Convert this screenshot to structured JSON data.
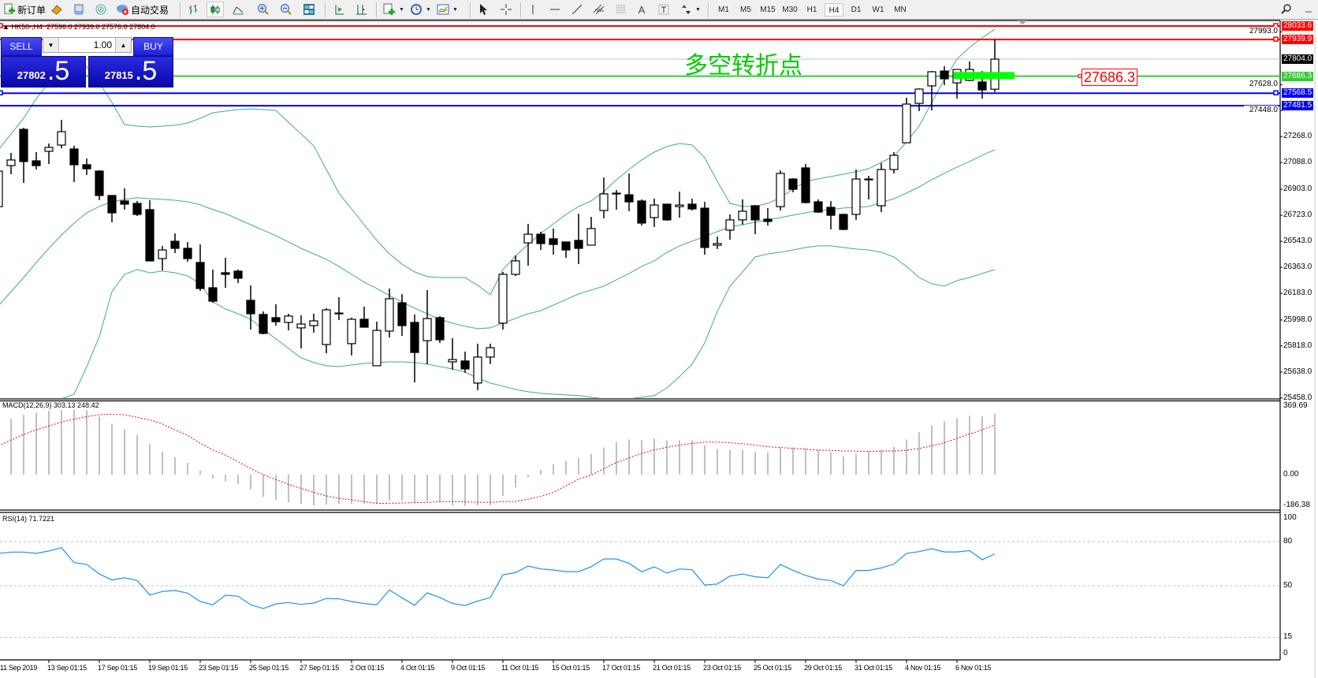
{
  "toolbar": {
    "new_order": "新订单",
    "auto_trading": "自动交易",
    "icons": [
      "new-order-icon",
      "folder-icon",
      "navigator-icon",
      "signal-icon",
      "auto-trading-icon",
      "bar-chart-icon",
      "candlestick-icon",
      "line-chart-icon",
      "zoom-in-icon",
      "zoom-out-icon",
      "tile-windows-icon",
      "auto-scroll-icon",
      "chart-shift-icon",
      "new-chart-icon",
      "periods-icon",
      "templates-icon",
      "cursor-icon",
      "crosshair-icon",
      "vertical-line-icon",
      "horizontal-line-icon",
      "trendline-icon",
      "channel-icon",
      "fibonacci-icon",
      "text-icon",
      "text-label-icon",
      "arrows-icon",
      "search-icon"
    ],
    "timeframes": [
      "M1",
      "M5",
      "M15",
      "M30",
      "H1",
      "H4",
      "D1",
      "W1",
      "MN"
    ],
    "active_timeframe": "H4"
  },
  "chart": {
    "title": "HK50-,H4",
    "ohlc": "27596.0 27939.0 27576.0 27804.0",
    "annotation": "多空转折点",
    "price_label": "27686.3"
  },
  "trade_panel": {
    "sell_label": "SELL",
    "buy_label": "BUY",
    "lot": "1.00",
    "sell_main": "27802",
    "sell_frac": ".5",
    "buy_main": "27815",
    "buy_frac": ".5"
  },
  "colors": {
    "bid_line": "#c0c0c0",
    "red_line": "#ff0000",
    "green_line": "#32cd32",
    "blue_line": "#0000ff",
    "bollinger": "#3cb371",
    "macd_hist": "#c0c0c0",
    "macd_signal": "#ff0000",
    "rsi": "#1e90ff",
    "zone": "#00ff00"
  },
  "chart_data": {
    "type": "candlestick",
    "symbol": "HK50-",
    "timeframe": "H4",
    "candles_ohlc": [
      [
        26783,
        27067,
        26740,
        27029
      ],
      [
        27067,
        27155,
        27007,
        27106
      ],
      [
        27318,
        27329,
        26947,
        27095
      ],
      [
        27100,
        27160,
        27040,
        27067
      ],
      [
        27166,
        27220,
        27078,
        27193
      ],
      [
        27209,
        27384,
        27187,
        27302
      ],
      [
        27182,
        27204,
        26953,
        27073
      ],
      [
        27073,
        27116,
        27002,
        27045
      ],
      [
        27029,
        27035,
        26827,
        26860
      ],
      [
        26860,
        26860,
        26674,
        26740
      ],
      [
        26822,
        26909,
        26762,
        26800
      ],
      [
        26805,
        26822,
        26718,
        26729
      ],
      [
        26762,
        26827,
        26407,
        26407
      ],
      [
        26423,
        26510,
        26341,
        26483
      ],
      [
        26543,
        26598,
        26461,
        26494
      ],
      [
        26494,
        26538,
        26401,
        26423
      ],
      [
        26396,
        26521,
        26199,
        26216
      ],
      [
        26221,
        26347,
        26117,
        26128
      ],
      [
        26325,
        26429,
        26221,
        26314
      ],
      [
        26336,
        26347,
        26254,
        26287
      ],
      [
        26134,
        26237,
        25932,
        26041
      ],
      [
        26036,
        26057,
        25899,
        25905
      ],
      [
        26014,
        26107,
        25959,
        25986
      ],
      [
        25981,
        26041,
        25926,
        26025
      ],
      [
        25943,
        26030,
        25801,
        25970
      ],
      [
        25959,
        26041,
        25910,
        25992
      ],
      [
        25828,
        26079,
        25768,
        26068
      ],
      [
        26046,
        26156,
        25997,
        26046
      ],
      [
        25834,
        26014,
        25752,
        26003
      ],
      [
        26003,
        26090,
        25948,
        25948
      ],
      [
        25681,
        25986,
        25681,
        25926
      ],
      [
        25921,
        26216,
        25877,
        26145
      ],
      [
        26117,
        26177,
        25888,
        25959
      ],
      [
        25981,
        26036,
        25566,
        25773
      ],
      [
        25855,
        26205,
        25692,
        26008
      ],
      [
        26014,
        26025,
        25839,
        25861
      ],
      [
        25708,
        25872,
        25654,
        25724
      ],
      [
        25714,
        25779,
        25632,
        25659
      ],
      [
        25561,
        25834,
        25512,
        25741
      ],
      [
        25741,
        25834,
        25692,
        25806
      ],
      [
        25976,
        26330,
        25932,
        26314
      ],
      [
        26314,
        26445,
        26303,
        26407
      ],
      [
        26532,
        26663,
        26374,
        26592
      ],
      [
        26592,
        26609,
        26483,
        26527
      ],
      [
        26560,
        26631,
        26450,
        26521
      ],
      [
        26538,
        26538,
        26429,
        26483
      ],
      [
        26549,
        26734,
        26385,
        26494
      ],
      [
        26516,
        26712,
        26516,
        26631
      ],
      [
        26756,
        26985,
        26702,
        26871
      ],
      [
        26876,
        26898,
        26762,
        26876
      ],
      [
        26865,
        27013,
        26751,
        26816
      ],
      [
        26822,
        26833,
        26652,
        26669
      ],
      [
        26707,
        26838,
        26642,
        26794
      ],
      [
        26800,
        26800,
        26685,
        26691
      ],
      [
        26783,
        26887,
        26707,
        26794
      ],
      [
        26800,
        26838,
        26756,
        26767
      ],
      [
        26772,
        26816,
        26450,
        26500
      ],
      [
        26516,
        26576,
        26489,
        26527
      ],
      [
        26620,
        26729,
        26554,
        26691
      ],
      [
        26691,
        26833,
        26658,
        26751
      ],
      [
        26789,
        26794,
        26592,
        26691
      ],
      [
        26696,
        26772,
        26652,
        26680
      ],
      [
        26783,
        27034,
        26756,
        27013
      ],
      [
        26974,
        26980,
        26882,
        26903
      ],
      [
        27051,
        27078,
        26805,
        26811
      ],
      [
        26816,
        26833,
        26740,
        26745
      ],
      [
        26778,
        26822,
        26625,
        26723
      ],
      [
        26729,
        26734,
        26620,
        26625
      ],
      [
        26729,
        27040,
        26691,
        26974
      ],
      [
        26974,
        26996,
        26833,
        26974
      ],
      [
        26789,
        27084,
        26745,
        27040
      ],
      [
        27040,
        27160,
        27013,
        27138
      ],
      [
        27225,
        27537,
        27225,
        27493
      ],
      [
        27498,
        27602,
        27444,
        27597
      ],
      [
        27619,
        27722,
        27449,
        27717
      ],
      [
        27722,
        27755,
        27624,
        27668
      ],
      [
        27640,
        27733,
        27531,
        27733
      ],
      [
        27657,
        27788,
        27651,
        27733
      ],
      [
        27646,
        27722,
        27531,
        27591
      ],
      [
        27596.0,
        27939.0,
        27576.0,
        27804.0
      ]
    ],
    "bollinger": {
      "upper": [
        27177,
        27286,
        27395,
        27531,
        27640,
        27722,
        27777,
        27750,
        27640,
        27504,
        27351,
        27340,
        27335,
        27340,
        27346,
        27362,
        27395,
        27433,
        27444,
        27455,
        27460,
        27455,
        27449,
        27367,
        27286,
        27204,
        27040,
        26876,
        26767,
        26658,
        26549,
        26456,
        26385,
        26331,
        26298,
        26292,
        26292,
        26292,
        26238,
        26172,
        26347,
        26440,
        26522,
        26598,
        26664,
        26729,
        26784,
        26822,
        26887,
        26969,
        27040,
        27106,
        27160,
        27199,
        27220,
        27210,
        27122,
        26958,
        26806,
        26784,
        26784,
        26806,
        26844,
        26904,
        26958,
        26975,
        26991,
        27008,
        27024,
        27046,
        27089,
        27133,
        27231,
        27340,
        27504,
        27663,
        27805,
        27886,
        27952,
        28012
      ],
      "middle": [
        26096,
        26194,
        26292,
        26396,
        26494,
        26587,
        26669,
        26740,
        26784,
        26816,
        26833,
        26844,
        26838,
        26833,
        26827,
        26816,
        26795,
        26762,
        26735,
        26696,
        26658,
        26620,
        26582,
        26538,
        26494,
        26456,
        26418,
        26369,
        26314,
        26260,
        26216,
        26167,
        26123,
        26080,
        26041,
        26003,
        25976,
        25954,
        25938,
        25943,
        25976,
        26009,
        26041,
        26063,
        26101,
        26140,
        26178,
        26205,
        26232,
        26276,
        26320,
        26369,
        26407,
        26467,
        26511,
        26544,
        26576,
        26609,
        26642,
        26658,
        26675,
        26691,
        26707,
        26724,
        26740,
        26756,
        26762,
        26773,
        26778,
        26784,
        26811,
        26838,
        26876,
        26920,
        26969,
        27013,
        27057,
        27095,
        27139,
        27177
      ],
      "lower": [
        25015,
        25102,
        25189,
        25261,
        25348,
        25452,
        25484,
        25675,
        25883,
        26194,
        26314,
        26347,
        26325,
        26336,
        26325,
        26303,
        26249,
        26123,
        26074,
        26041,
        26003,
        25932,
        25867,
        25801,
        25736,
        25703,
        25681,
        25675,
        25686,
        25697,
        25703,
        25708,
        25708,
        25703,
        25692,
        25675,
        25659,
        25637,
        25594,
        25561,
        25539,
        25517,
        25501,
        25490,
        25484,
        25479,
        25474,
        25463,
        25452,
        25446,
        25452,
        25463,
        25474,
        25528,
        25605,
        25692,
        25839,
        26058,
        26232,
        26331,
        26434,
        26456,
        26467,
        26483,
        26500,
        26511,
        26511,
        26500,
        26489,
        26483,
        26467,
        26434,
        26369,
        26292,
        26249,
        26232,
        26271,
        26292,
        26320,
        26347
      ]
    },
    "price_ticks": [
      "27993.0",
      "27628.0",
      "27448.0",
      "27268.0",
      "27088.0",
      "26903.0",
      "26723.0",
      "26543.0",
      "26363.0",
      "26183.0",
      "25998.0",
      "25818.0",
      "25638.0",
      "25458.0"
    ],
    "horizontal_lines": [
      {
        "price": 28033.6,
        "label": "28033.6",
        "color": "#ff0000",
        "text": "#ffffff"
      },
      {
        "price": 27939.9,
        "label": "27939.9",
        "color": "#ff0000",
        "text": "#ffffff"
      },
      {
        "price": 27804.0,
        "label": "27804.0",
        "color": "#000000",
        "text": "#ffffff",
        "line": "#c0c0c0"
      },
      {
        "price": 27686.3,
        "label": "27686.3",
        "color": "#32cd32",
        "text": "#ffffff"
      },
      {
        "price": 27568.5,
        "label": "27568.5",
        "color": "#0000ff",
        "text": "#ffffff"
      },
      {
        "price": 27481.5,
        "label": "27481.5",
        "color": "#0000ff",
        "text": "#ffffff"
      }
    ],
    "zone": {
      "price_low": 27666,
      "price_high": 27715,
      "color": "#00ff00"
    },
    "x_labels": [
      "11 Sep 2019",
      "13 Sep 01:15",
      "17 Sep 01:15",
      "19 Sep 01:15",
      "23 Sep 01:15",
      "25 Sep 01:15",
      "27 Sep 01:15",
      "2 Oct 01:15",
      "4 Oct 01:15",
      "9 Oct 01:15",
      "11 Oct 01:15",
      "15 Oct 01:15",
      "17 Oct 01:15",
      "21 Oct 01:15",
      "23 Oct 01:15",
      "25 Oct 01:15",
      "29 Oct 01:15",
      "31 Oct 01:15",
      "4 Nov 01:15",
      "6 Nov 01:15"
    ],
    "macd": {
      "label": "MACD(12,26,9) 303.13 248.42",
      "y_ticks": [
        "369.69",
        "0.00",
        "-186.38"
      ],
      "ylim": [
        -186.38,
        369.69
      ],
      "histogram": [
        265,
        278,
        298,
        309,
        318,
        322,
        323,
        322,
        289,
        253,
        226,
        199,
        151,
        115,
        87,
        60,
        20,
        -19,
        -34,
        -48,
        -75,
        -111,
        -126,
        -138,
        -146,
        -154,
        -150,
        -146,
        -146,
        -145,
        -146,
        -131,
        -130,
        -139,
        -133,
        -140,
        -154,
        -156,
        -154,
        -154,
        -106,
        -64,
        -12,
        24,
        52,
        68,
        83,
        103,
        135,
        163,
        175,
        171,
        179,
        171,
        171,
        171,
        147,
        127,
        123,
        123,
        115,
        111,
        135,
        135,
        131,
        123,
        111,
        91,
        103,
        115,
        123,
        139,
        175,
        211,
        246,
        266,
        282,
        294,
        290,
        303.13
      ],
      "signal": [
        143,
        172,
        200,
        223,
        242,
        262,
        276,
        289,
        299,
        302,
        298,
        286,
        273,
        253,
        223,
        196,
        156,
        123,
        97,
        64,
        30,
        0,
        -25,
        -49,
        -69,
        -89,
        -106,
        -119,
        -126,
        -135,
        -144,
        -143,
        -142,
        -140,
        -139,
        -135,
        -135,
        -136,
        -138,
        -139,
        -135,
        -134,
        -122,
        -109,
        -89,
        -56,
        -23,
        -3,
        30,
        60,
        83,
        106,
        123,
        136,
        147,
        156,
        162,
        162,
        159,
        154,
        147,
        139,
        135,
        131,
        127,
        122,
        121,
        118,
        117,
        115,
        117,
        118,
        121,
        130,
        143,
        159,
        180,
        203,
        223,
        248.42
      ]
    },
    "rsi": {
      "label": "RSI(14) 71.7221",
      "y_ticks": [
        "100",
        "80",
        "50",
        "15",
        "0"
      ],
      "levels": [
        80,
        50,
        15
      ],
      "ylim": [
        0,
        100
      ],
      "values": [
        72.0,
        72.9,
        72.9,
        72.0,
        73.6,
        75.9,
        65.7,
        64.5,
        58.0,
        53.9,
        55.4,
        53.6,
        43.7,
        46.1,
        46.8,
        45.0,
        39.3,
        37.1,
        43.6,
        42.9,
        37.1,
        34.5,
        37.7,
        38.6,
        37.3,
        38.2,
        41.4,
        41.1,
        39.3,
        37.9,
        37.1,
        47.1,
        41.8,
        36.8,
        45.2,
        42.0,
        37.9,
        36.6,
        39.6,
        42.0,
        57.5,
        58.9,
        63.4,
        61.4,
        60.7,
        59.6,
        59.6,
        62.9,
        68.2,
        68.2,
        65.2,
        59.5,
        62.9,
        58.6,
        61.4,
        60.9,
        50.5,
        51.2,
        56.6,
        58.0,
        56.1,
        55.4,
        64.6,
        60.4,
        57.1,
        54.5,
        53.6,
        50.0,
        60.4,
        60.4,
        62.1,
        64.8,
        72.0,
        73.2,
        75.2,
        73.0,
        73.0,
        73.9,
        67.7,
        71.7221
      ]
    }
  }
}
